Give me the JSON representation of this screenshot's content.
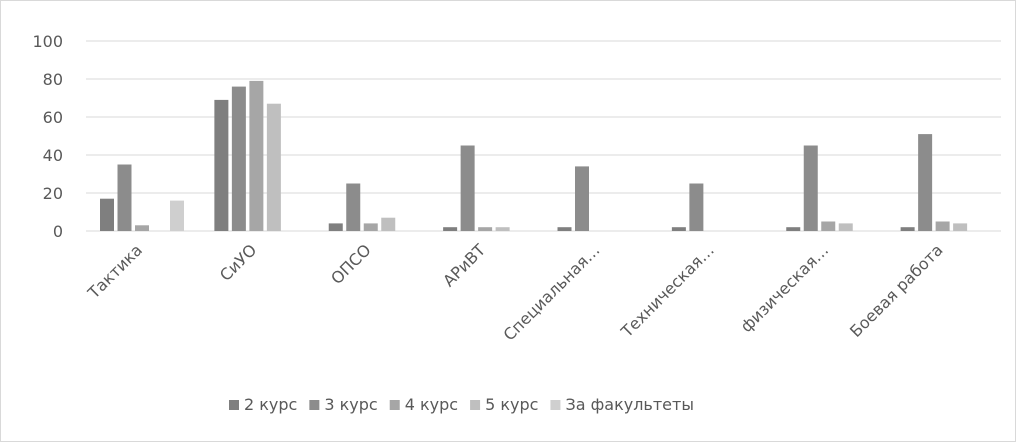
{
  "chart_data": {
    "type": "bar",
    "title": "",
    "xlabel": "",
    "ylabel": "",
    "ylim": [
      0,
      100
    ],
    "yticks": [
      "0",
      "20",
      "40",
      "60",
      "80",
      "100"
    ],
    "grid": true,
    "legend_position": "bottom",
    "categories": [
      "Тактика",
      "СиУО",
      "ОПСО",
      "АРиВТ",
      "Специальная…",
      "Техническая…",
      "физическая…",
      "Боевая работа"
    ],
    "series": [
      {
        "name": "2 курс",
        "color": "#7f7f7f",
        "values": [
          17,
          69,
          4,
          2,
          2,
          2,
          2,
          2
        ]
      },
      {
        "name": "3 курс",
        "color": "#8c8c8c",
        "values": [
          35,
          76,
          25,
          45,
          34,
          25,
          45,
          51
        ]
      },
      {
        "name": "4 курс",
        "color": "#a6a6a6",
        "values": [
          3,
          79,
          4,
          2,
          0,
          0,
          5,
          5
        ]
      },
      {
        "name": "5 курс",
        "color": "#bfbfbf",
        "values": [
          0,
          67,
          7,
          2,
          0,
          0,
          4,
          4
        ]
      },
      {
        "name": "За факультеты",
        "color": "#cfcfcf",
        "values": [
          16,
          0,
          0,
          0,
          0,
          0,
          0,
          0
        ]
      }
    ]
  }
}
